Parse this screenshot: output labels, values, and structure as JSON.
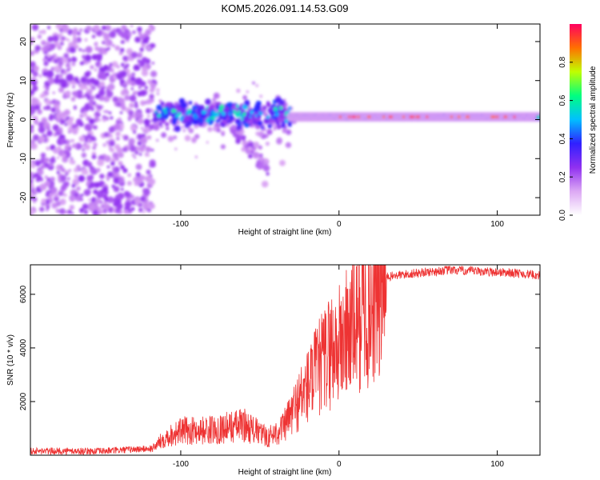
{
  "title": "KOM5.2026.091.14.53.G09",
  "colors": {
    "snr_line": "#ee3333",
    "frame": "#000000",
    "background": "#ffffff"
  },
  "chart_data": [
    {
      "type": "heatmap",
      "name": "spectrogram",
      "xlabel": "Height of straight line (km)",
      "ylabel": "Frequency (Hz)",
      "xlim": [
        -195,
        127
      ],
      "ylim": [
        -24.5,
        24.5
      ],
      "x_ticks": [
        -100,
        0,
        100
      ],
      "y_ticks": [
        -20,
        -10,
        0,
        10,
        20
      ],
      "colorbar": {
        "label": "Normalized spectral amplitude",
        "range": [
          0,
          1
        ],
        "ticks": [
          "0.0",
          "0.2",
          "0.4",
          "0.6",
          "0.8"
        ],
        "colormap": [
          "#ffffff",
          "#dca8f4",
          "#9030f0",
          "#3020ff",
          "#00c0ff",
          "#00ff80",
          "#c0ff00",
          "#ff7000",
          "#ff0060"
        ]
      },
      "features": [
        {
          "region": "noise",
          "x_range": [
            -195,
            -117
          ],
          "freq_range": [
            -24,
            24
          ],
          "amplitude": 0.1
        },
        {
          "region": "scintillation",
          "x_range": [
            -117,
            -30
          ],
          "center_freq": 1.5,
          "amplitude": 0.3
        },
        {
          "region": "branch",
          "x_range": [
            -80,
            -45
          ],
          "freq_range": [
            -15,
            8
          ],
          "amplitude": 0.15
        },
        {
          "region": "main-tone",
          "x_range": [
            -30,
            127
          ],
          "center_freq": 0.7,
          "amplitude": 0.95
        }
      ]
    },
    {
      "type": "line",
      "name": "snr",
      "xlabel": "Height of straight line (km)",
      "ylabel": "SNR (10 * v/v)",
      "xlim": [
        -195,
        127
      ],
      "ylim": [
        0,
        7100
      ],
      "x_ticks": [
        -100,
        0,
        100
      ],
      "y_ticks": [
        2000,
        4000,
        6000
      ],
      "profile_x": [
        -195,
        -150,
        -118,
        -110,
        -100,
        -80,
        -60,
        -45,
        -35,
        -25,
        -15,
        -5,
        0,
        10,
        20,
        30,
        50,
        70,
        90,
        110,
        127
      ],
      "profile_y": [
        150,
        150,
        250,
        700,
        950,
        1000,
        1200,
        700,
        1100,
        2200,
        3200,
        4200,
        4300,
        5300,
        6100,
        6650,
        6800,
        6900,
        6850,
        6800,
        6700
      ]
    }
  ]
}
